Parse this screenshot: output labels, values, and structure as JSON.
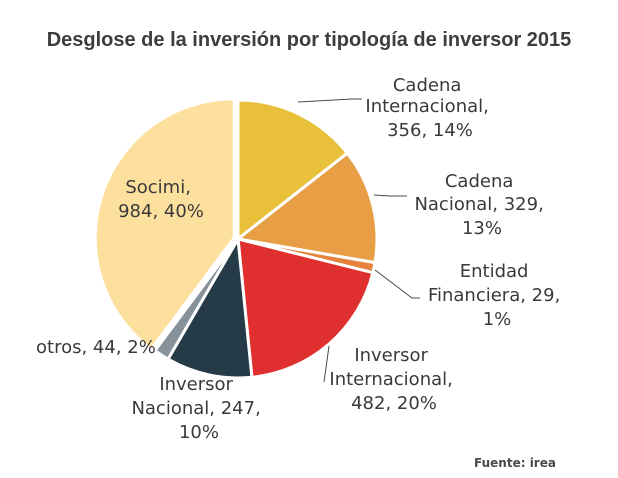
{
  "chart_data": {
    "type": "pie",
    "title": "Desglose de la inversión por tipología de inversor 2015",
    "source": "Fuente: irea",
    "slices": [
      {
        "name": "Cadena Internacional",
        "value": 356,
        "percent": "14%",
        "color": "#e8c03a",
        "label_lines": [
          "Cadena",
          "Internacional,",
          "356, 14%"
        ]
      },
      {
        "name": "Cadena Nacional",
        "value": 329,
        "percent": "13%",
        "color": "#e79e44",
        "label_lines": [
          "Cadena",
          "Nacional, 329,",
          "13%"
        ]
      },
      {
        "name": "Entidad Financiera",
        "value": 29,
        "percent": "1%",
        "color": "#e5823d",
        "label_lines": [
          "Entidad",
          "Financiera, 29,",
          "1%"
        ]
      },
      {
        "name": "Inversor Internacional",
        "value": 482,
        "percent": "20%",
        "color": "#e02f2f",
        "label_lines": [
          "Inversor",
          "Internacional,",
          "482, 20%"
        ]
      },
      {
        "name": "Inversor Nacional",
        "value": 247,
        "percent": "10%",
        "color": "#263b48",
        "label_lines": [
          "Inversor",
          "Nacional, 247,",
          "10%"
        ]
      },
      {
        "name": "otros",
        "value": 44,
        "percent": "2%",
        "color": "#869199",
        "label_lines": [
          "otros, 44, 2%"
        ]
      },
      {
        "name": "Socimi",
        "value": 984,
        "percent": "40%",
        "color": "#fde09e",
        "label_lines": [
          "Socimi,",
          "984, 40%"
        ],
        "exploded": true
      }
    ]
  }
}
